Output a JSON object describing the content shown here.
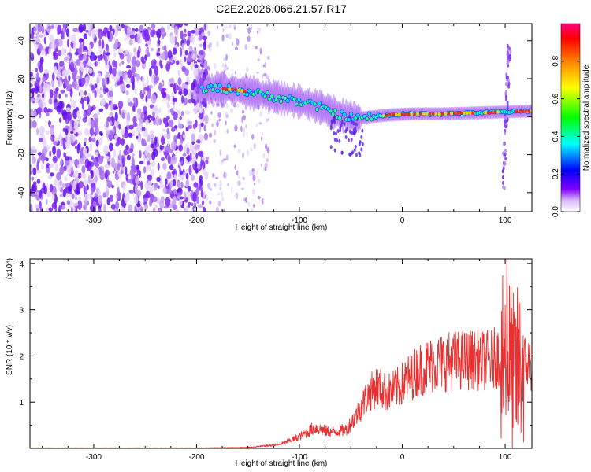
{
  "title": "C2E2.2026.066.21.57.R17",
  "colors": {
    "axis": "#000000",
    "snr_line": "#e83030",
    "background": "#ffffff"
  },
  "chart_data": [
    {
      "type": "heatmap",
      "name": "spectrogram",
      "xlabel": "Height of straight line (km)",
      "ylabel": "Frequency (Hz)",
      "xlim": [
        -362,
        126
      ],
      "ylim": [
        -50,
        49
      ],
      "xticks": [
        -300,
        -200,
        -100,
        0,
        100
      ],
      "yticks": [
        -40,
        -20,
        0,
        20,
        40
      ],
      "colorbar": {
        "label": "Normalized spectral amplitude",
        "range": [
          0,
          1
        ],
        "ticks": [
          0.0,
          0.2,
          0.4,
          0.6,
          0.8
        ],
        "colormap": [
          "#ffffff",
          "#d8b8f8",
          "#8000ff",
          "#0000ff",
          "#00ffff",
          "#00ff00",
          "#ffff00",
          "#ff8000",
          "#ff0000",
          "#ff0080"
        ]
      },
      "ridge": [
        {
          "x": -200,
          "f": 14
        },
        {
          "x": -180,
          "f": 15
        },
        {
          "x": -160,
          "f": 14
        },
        {
          "x": -140,
          "f": 12
        },
        {
          "x": -120,
          "f": 10
        },
        {
          "x": -100,
          "f": 8
        },
        {
          "x": -80,
          "f": 5
        },
        {
          "x": -60,
          "f": 1
        },
        {
          "x": -45,
          "f": -1
        },
        {
          "x": -30,
          "f": 0
        },
        {
          "x": -10,
          "f": 1
        },
        {
          "x": 10,
          "f": 1.5
        },
        {
          "x": 40,
          "f": 1.5
        },
        {
          "x": 70,
          "f": 2
        },
        {
          "x": 100,
          "f": 2.5
        },
        {
          "x": 126,
          "f": 3
        }
      ]
    },
    {
      "type": "line",
      "name": "snr",
      "xlabel": "Height of straight line (km)",
      "ylabel": "SNR (10 * v/v)",
      "multiplier": "(x10⁴)",
      "xlim": [
        -362,
        126
      ],
      "ylim": [
        0,
        4.1
      ],
      "xticks": [
        -300,
        -200,
        -100,
        0,
        100
      ],
      "yticks": [
        1,
        2,
        3,
        4
      ],
      "series": [
        {
          "name": "SNR",
          "envelope": [
            {
              "x": -362,
              "y": 0.01
            },
            {
              "x": -200,
              "y": 0.01
            },
            {
              "x": -150,
              "y": 0.02
            },
            {
              "x": -120,
              "y": 0.08
            },
            {
              "x": -100,
              "y": 0.25
            },
            {
              "x": -85,
              "y": 0.45
            },
            {
              "x": -70,
              "y": 0.35
            },
            {
              "x": -55,
              "y": 0.4
            },
            {
              "x": -45,
              "y": 0.7
            },
            {
              "x": -35,
              "y": 1.1
            },
            {
              "x": -25,
              "y": 1.35
            },
            {
              "x": -15,
              "y": 1.2
            },
            {
              "x": -5,
              "y": 1.3
            },
            {
              "x": 5,
              "y": 1.5
            },
            {
              "x": 20,
              "y": 1.75
            },
            {
              "x": 35,
              "y": 1.85
            },
            {
              "x": 50,
              "y": 1.9
            },
            {
              "x": 70,
              "y": 1.92
            },
            {
              "x": 85,
              "y": 1.9
            },
            {
              "x": 95,
              "y": 2.0
            },
            {
              "x": 102,
              "y": 2.2
            },
            {
              "x": 108,
              "y": 1.5
            },
            {
              "x": 115,
              "y": 1.8
            },
            {
              "x": 120,
              "y": 1.85
            },
            {
              "x": 126,
              "y": 1.8
            }
          ],
          "peak_max": 4.1
        }
      ]
    }
  ]
}
